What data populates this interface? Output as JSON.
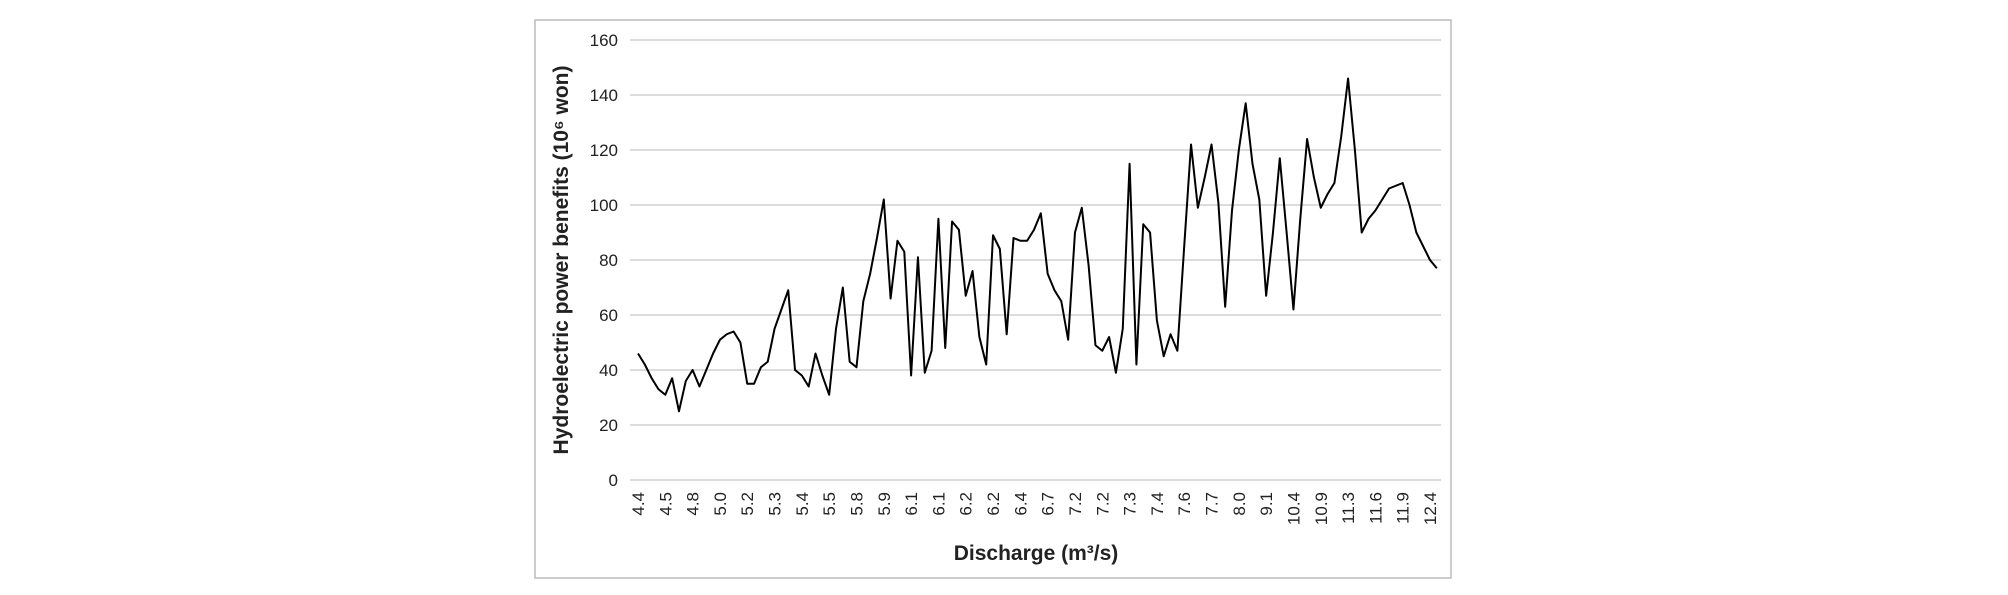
{
  "chart_data": {
    "type": "line",
    "x_label": "Discharge (m³/s)",
    "y_label": "Hydroelectric  power benefits (10⁶ won)",
    "categories": [
      "4.4",
      null,
      null,
      null,
      "4.5",
      null,
      null,
      null,
      "4.8",
      null,
      null,
      null,
      "5.0",
      null,
      null,
      null,
      "5.2",
      null,
      null,
      null,
      "5.3",
      null,
      null,
      null,
      "5.4",
      null,
      null,
      null,
      "5.5",
      null,
      null,
      null,
      "5.8",
      null,
      null,
      null,
      "5.9",
      null,
      null,
      null,
      "6.1",
      null,
      null,
      null,
      "6.1",
      null,
      null,
      null,
      "6.2",
      null,
      null,
      null,
      "6.2",
      null,
      null,
      null,
      "6.4",
      null,
      null,
      null,
      "6.7",
      null,
      null,
      null,
      "7.2",
      null,
      null,
      null,
      "7.2",
      null,
      null,
      null,
      "7.3",
      null,
      null,
      null,
      "7.4",
      null,
      null,
      null,
      "7.6",
      null,
      null,
      null,
      "7.7",
      null,
      null,
      null,
      "8.0",
      null,
      null,
      null,
      "9.1",
      null,
      null,
      null,
      "10.4",
      null,
      null,
      null,
      "10.9",
      null,
      null,
      null,
      "11.3",
      null,
      null,
      null,
      "11.6",
      null,
      null,
      null,
      "11.9",
      null,
      null,
      null,
      "12.4",
      null
    ],
    "values": [
      46,
      42,
      37,
      33,
      31,
      37,
      25,
      36,
      40,
      34,
      40,
      46,
      51,
      53,
      54,
      50,
      35,
      35,
      41,
      43,
      55,
      62,
      69,
      40,
      38,
      34,
      46,
      38,
      31,
      55,
      70,
      43,
      41,
      65,
      75,
      88,
      102,
      66,
      87,
      83,
      38,
      81,
      39,
      47,
      95,
      48,
      94,
      91,
      67,
      76,
      52,
      42,
      89,
      84,
      53,
      88,
      87,
      87,
      91,
      97,
      75,
      69,
      65,
      51,
      90,
      99,
      78,
      49,
      47,
      52,
      39,
      55,
      115,
      42,
      93,
      90,
      58,
      45,
      53,
      47,
      85,
      122,
      99,
      110,
      122,
      101,
      63,
      98,
      120,
      137,
      115,
      102,
      67,
      90,
      117,
      90,
      62,
      95,
      124,
      110,
      99,
      104,
      108,
      125,
      146,
      120,
      90,
      95,
      98,
      102,
      106,
      107,
      108,
      100,
      90,
      85,
      80,
      77
    ],
    "color": "#000000",
    "ylim": [
      0,
      160
    ],
    "yticks": [
      0,
      20,
      40,
      60,
      80,
      100,
      120,
      140,
      160
    ],
    "grid": true
  }
}
